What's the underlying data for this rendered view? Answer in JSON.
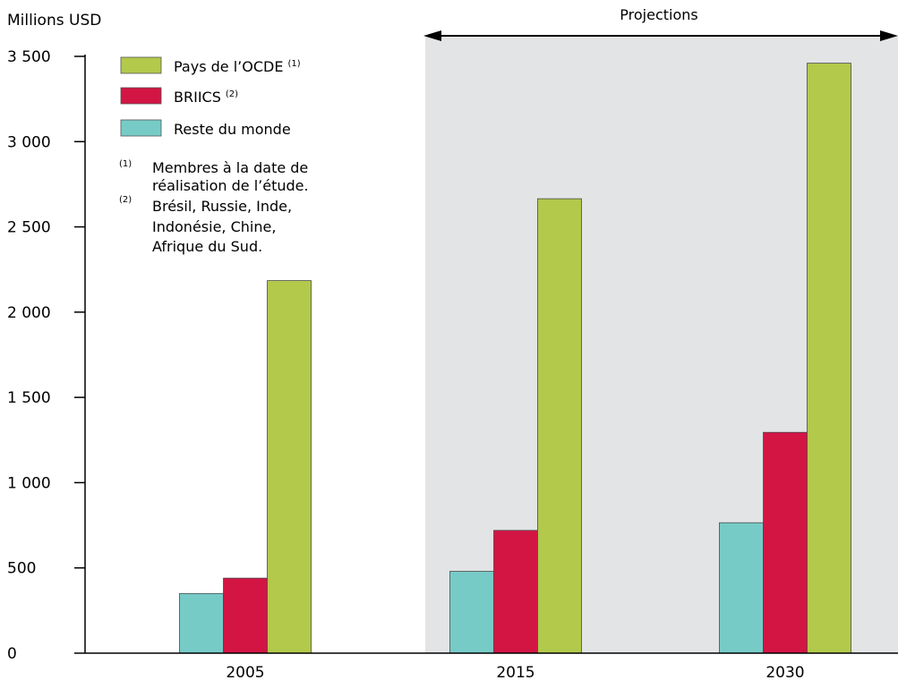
{
  "chart_data": {
    "type": "bar",
    "ylabel": "Millions USD",
    "categories": [
      "2005",
      "2015",
      "2030"
    ],
    "ylim": [
      0,
      3500
    ],
    "yticks": [
      0,
      500,
      1000,
      1500,
      2000,
      2500,
      3000,
      3500
    ],
    "ytick_labels": [
      "0",
      "500",
      "1 000",
      "1 500",
      "2 000",
      "2 500",
      "3 000",
      "3 500"
    ],
    "series": [
      {
        "name": "Reste du monde",
        "values": [
          350,
          480,
          765
        ],
        "color": "#77cbc7"
      },
      {
        "name": "BRIICS",
        "note_ref": "(2)",
        "values": [
          440,
          720,
          1295
        ],
        "color": "#d31544"
      },
      {
        "name": "Pays de l’OCDE",
        "note_ref": "(1)",
        "values": [
          2185,
          2665,
          3460
        ],
        "color": "#b2c94b"
      }
    ],
    "legend_order": [
      2,
      1,
      0
    ],
    "legend_position": "top-left",
    "notes": [
      {
        "ref": "(1)",
        "lines": [
          "Membres à la date de",
          "réalisation de l’étude."
        ]
      },
      {
        "ref": "(2)",
        "lines": [
          "Brésil, Russie, Inde,",
          "Indonésie, Chine,",
          "Afrique du Sud."
        ]
      }
    ],
    "projection": {
      "label": "Projections",
      "from_category": "2015",
      "shade_color": "#e3e4e6"
    },
    "grid": false
  }
}
